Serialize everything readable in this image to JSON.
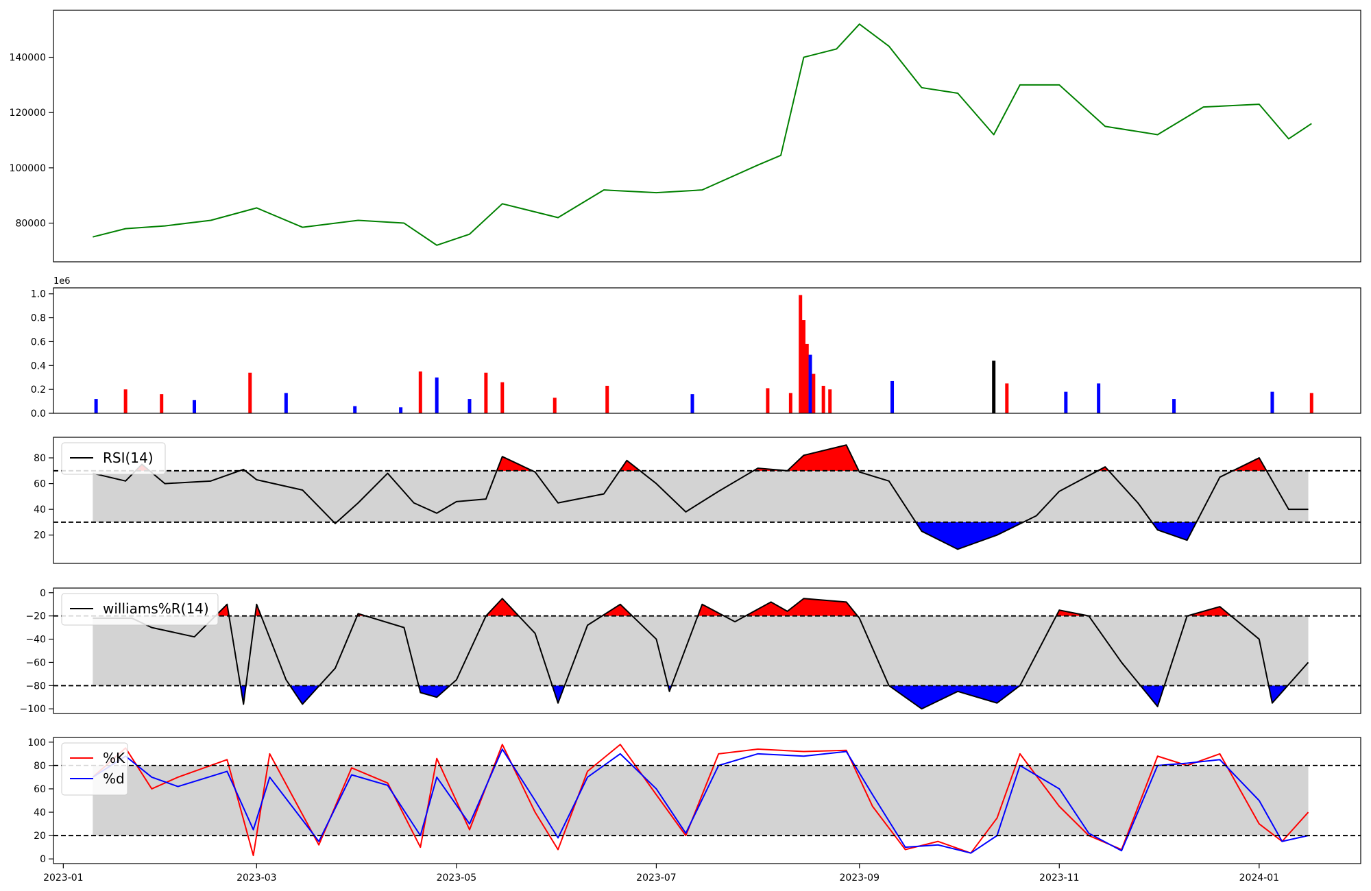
{
  "chart_data": [
    {
      "type": "line",
      "panel": "price",
      "color": "#008000",
      "ylim": [
        66000,
        157000
      ],
      "yticks": [
        80000,
        100000,
        120000,
        140000
      ],
      "x": [
        "2023-01-10",
        "2023-01-20",
        "2023-02-01",
        "2023-02-15",
        "2023-03-01",
        "2023-03-15",
        "2023-04-01",
        "2023-04-15",
        "2023-04-25",
        "2023-05-05",
        "2023-05-15",
        "2023-06-01",
        "2023-06-15",
        "2023-07-01",
        "2023-07-15",
        "2023-08-01",
        "2023-08-08",
        "2023-08-15",
        "2023-08-25",
        "2023-09-01",
        "2023-09-10",
        "2023-09-20",
        "2023-10-01",
        "2023-10-12",
        "2023-10-20",
        "2023-11-01",
        "2023-11-15",
        "2023-12-01",
        "2023-12-15",
        "2024-01-01",
        "2024-01-10",
        "2024-01-17"
      ],
      "values": [
        75000,
        78000,
        79000,
        81000,
        85500,
        78500,
        81000,
        80000,
        72000,
        76000,
        87000,
        82000,
        92000,
        91000,
        92000,
        101000,
        104500,
        140000,
        143000,
        152000,
        144000,
        129000,
        127000,
        112000,
        130000,
        130000,
        115000,
        112000,
        122000,
        123000,
        110500,
        116000
      ]
    },
    {
      "type": "bar",
      "panel": "volume",
      "exponent_label": "1e6",
      "ylim": [
        0,
        1.05
      ],
      "yticks": [
        0.0,
        0.2,
        0.4,
        0.6,
        0.8,
        1.0
      ],
      "tick_format": "1dp",
      "colors": {
        "up": "#ff0000",
        "down": "#0000ff",
        "flat": "#000000"
      },
      "x": [
        "2023-01-11",
        "2023-01-20",
        "2023-01-31",
        "2023-02-10",
        "2023-02-27",
        "2023-03-10",
        "2023-03-31",
        "2023-04-14",
        "2023-04-20",
        "2023-04-25",
        "2023-05-05",
        "2023-05-10",
        "2023-05-15",
        "2023-05-31",
        "2023-06-16",
        "2023-07-12",
        "2023-08-04",
        "2023-08-11",
        "2023-08-14",
        "2023-08-15",
        "2023-08-16",
        "2023-08-17",
        "2023-08-18",
        "2023-08-21",
        "2023-08-23",
        "2023-09-11",
        "2023-10-12",
        "2023-10-16",
        "2023-11-03",
        "2023-11-13",
        "2023-12-06",
        "2024-01-05",
        "2024-01-17"
      ],
      "values": [
        0.12,
        0.2,
        0.16,
        0.11,
        0.34,
        0.17,
        0.06,
        0.05,
        0.35,
        0.3,
        0.12,
        0.34,
        0.26,
        0.13,
        0.23,
        0.16,
        0.21,
        0.17,
        0.99,
        0.78,
        0.58,
        0.49,
        0.33,
        0.23,
        0.2,
        0.27,
        0.44,
        0.25,
        0.18,
        0.25,
        0.12,
        0.18,
        0.17
      ],
      "direction": [
        "down",
        "up",
        "up",
        "blue",
        "up",
        "down",
        "down",
        "down",
        "up",
        "down",
        "down",
        "up",
        "up",
        "up",
        "up",
        "down",
        "up",
        "up",
        "up",
        "up",
        "up",
        "down",
        "up",
        "up",
        "up",
        "down",
        "flat",
        "up",
        "down",
        "down",
        "down",
        "down",
        "up"
      ]
    },
    {
      "type": "area",
      "panel": "rsi",
      "ylim": [
        -2,
        96
      ],
      "yticks": [
        20,
        40,
        60,
        80
      ],
      "band": [
        30,
        70
      ],
      "legend": "RSI(14)",
      "colors": {
        "line": "#000000",
        "band": "#d3d3d3",
        "high": "#ff0000",
        "low": "#0000ff"
      },
      "x": [
        "2023-01-10",
        "2023-01-20",
        "2023-01-25",
        "2023-02-01",
        "2023-02-15",
        "2023-02-25",
        "2023-03-01",
        "2023-03-15",
        "2023-03-25",
        "2023-04-01",
        "2023-04-10",
        "2023-04-18",
        "2023-04-25",
        "2023-05-01",
        "2023-05-10",
        "2023-05-15",
        "2023-05-25",
        "2023-06-01",
        "2023-06-15",
        "2023-06-22",
        "2023-07-01",
        "2023-07-10",
        "2023-07-20",
        "2023-08-01",
        "2023-08-10",
        "2023-08-15",
        "2023-08-28",
        "2023-09-01",
        "2023-09-10",
        "2023-09-20",
        "2023-10-01",
        "2023-10-13",
        "2023-10-25",
        "2023-11-01",
        "2023-11-15",
        "2023-11-25",
        "2023-12-01",
        "2023-12-10",
        "2023-12-20",
        "2024-01-01",
        "2024-01-10",
        "2024-01-16"
      ],
      "values": [
        68,
        62,
        75,
        60,
        62,
        71,
        63,
        55,
        29,
        45,
        68,
        45,
        37,
        46,
        48,
        81,
        69,
        45,
        52,
        78,
        60,
        38,
        54,
        72,
        70,
        82,
        90,
        69,
        62,
        23,
        9,
        20,
        35,
        54,
        73,
        45,
        24,
        16,
        65,
        80,
        40,
        40
      ]
    },
    {
      "type": "area",
      "panel": "williams",
      "ylim": [
        -104,
        4
      ],
      "yticks": [
        0,
        -20,
        -40,
        -60,
        -80,
        -100
      ],
      "band": [
        -80,
        -20
      ],
      "legend": "williams%R(14)",
      "colors": {
        "line": "#000000",
        "band": "#d3d3d3",
        "high": "#ff0000",
        "low": "#0000ff"
      },
      "x": [
        "2023-01-10",
        "2023-01-22",
        "2023-01-28",
        "2023-02-10",
        "2023-02-20",
        "2023-02-25",
        "2023-03-01",
        "2023-03-10",
        "2023-03-15",
        "2023-03-25",
        "2023-04-01",
        "2023-04-15",
        "2023-04-20",
        "2023-04-25",
        "2023-05-01",
        "2023-05-10",
        "2023-05-15",
        "2023-05-25",
        "2023-06-01",
        "2023-06-10",
        "2023-06-20",
        "2023-07-01",
        "2023-07-05",
        "2023-07-15",
        "2023-07-25",
        "2023-08-05",
        "2023-08-10",
        "2023-08-15",
        "2023-08-28",
        "2023-09-01",
        "2023-09-10",
        "2023-09-20",
        "2023-10-01",
        "2023-10-13",
        "2023-10-20",
        "2023-11-01",
        "2023-11-10",
        "2023-11-20",
        "2023-12-01",
        "2023-12-10",
        "2023-12-20",
        "2024-01-01",
        "2024-01-05",
        "2024-01-16"
      ],
      "values": [
        -22,
        -22,
        -30,
        -38,
        -10,
        -96,
        -10,
        -75,
        -96,
        -65,
        -18,
        -30,
        -86,
        -90,
        -75,
        -20,
        -5,
        -35,
        -95,
        -28,
        -10,
        -40,
        -85,
        -10,
        -25,
        -8,
        -16,
        -5,
        -8,
        -22,
        -80,
        -100,
        -85,
        -95,
        -80,
        -15,
        -20,
        -60,
        -98,
        -20,
        -12,
        -40,
        -95,
        -60
      ]
    },
    {
      "type": "line",
      "panel": "stochastic",
      "ylim": [
        -4,
        104
      ],
      "yticks": [
        0,
        20,
        40,
        60,
        80,
        100
      ],
      "band": [
        20,
        80
      ],
      "colors": {
        "band": "#d3d3d3"
      },
      "x_axis": {
        "min": "2022-12-29",
        "max": "2024-02-01",
        "ticks": [
          "2023-01",
          "2023-03",
          "2023-05",
          "2023-07",
          "2023-09",
          "2023-11",
          "2024-01"
        ]
      },
      "x": [
        "2023-01-10",
        "2023-01-20",
        "2023-01-28",
        "2023-02-05",
        "2023-02-20",
        "2023-02-28",
        "2023-03-05",
        "2023-03-20",
        "2023-03-30",
        "2023-04-10",
        "2023-04-20",
        "2023-04-25",
        "2023-05-05",
        "2023-05-15",
        "2023-05-25",
        "2023-06-01",
        "2023-06-10",
        "2023-06-20",
        "2023-07-01",
        "2023-07-10",
        "2023-07-20",
        "2023-08-01",
        "2023-08-15",
        "2023-08-28",
        "2023-09-05",
        "2023-09-15",
        "2023-09-25",
        "2023-10-05",
        "2023-10-13",
        "2023-10-20",
        "2023-11-01",
        "2023-11-10",
        "2023-11-20",
        "2023-12-01",
        "2023-12-10",
        "2023-12-20",
        "2024-01-01",
        "2024-01-08",
        "2024-01-16"
      ],
      "series": [
        {
          "name": "%K",
          "color": "#ff0000",
          "values": [
            70,
            95,
            60,
            70,
            85,
            3,
            90,
            12,
            78,
            65,
            10,
            86,
            25,
            98,
            40,
            8,
            75,
            98,
            55,
            20,
            90,
            94,
            92,
            93,
            45,
            8,
            15,
            5,
            35,
            90,
            45,
            20,
            8,
            88,
            80,
            90,
            30,
            15,
            40
          ]
        },
        {
          "name": "%d",
          "color": "#0000ff",
          "values": [
            70,
            88,
            70,
            62,
            75,
            25,
            70,
            15,
            72,
            63,
            20,
            70,
            30,
            94,
            50,
            18,
            70,
            90,
            60,
            22,
            80,
            90,
            88,
            92,
            55,
            10,
            12,
            5,
            20,
            80,
            60,
            22,
            7,
            80,
            82,
            85,
            50,
            15,
            20
          ]
        }
      ]
    }
  ]
}
